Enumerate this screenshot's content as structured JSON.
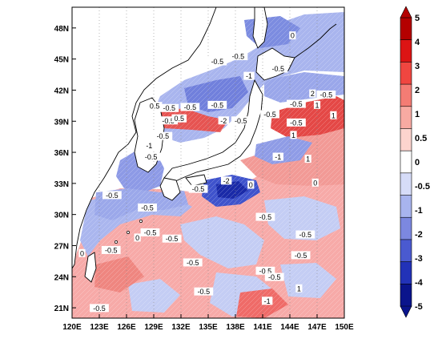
{
  "map": {
    "x_ticks": [
      "120E",
      "123E",
      "126E",
      "129E",
      "132E",
      "135E",
      "138E",
      "141E",
      "144E",
      "147E",
      "150E"
    ],
    "y_ticks": [
      "48N",
      "45N",
      "42N",
      "39N",
      "36N",
      "33N",
      "30N",
      "27N",
      "24N",
      "21N"
    ],
    "contour_labels": [
      {
        "text": "0",
        "lon": 144.3,
        "lat": 47.2
      },
      {
        "text": "-0.5",
        "lon": 136.0,
        "lat": 44.7
      },
      {
        "text": "-0.5",
        "lon": 138.3,
        "lat": 45.2
      },
      {
        "text": "-1",
        "lon": 139.5,
        "lat": 43.3
      },
      {
        "text": "-0.5",
        "lon": 142.7,
        "lat": 44.0
      },
      {
        "text": "0.5",
        "lon": 129.1,
        "lat": 40.4
      },
      {
        "text": "-0.5",
        "lon": 130.7,
        "lat": 40.2
      },
      {
        "text": "-0.5",
        "lon": 133.0,
        "lat": 40.3
      },
      {
        "text": "-0.5",
        "lon": 136.0,
        "lat": 40.5
      },
      {
        "text": "-0.5",
        "lon": 144.7,
        "lat": 40.6
      },
      {
        "text": "2",
        "lon": 146.5,
        "lat": 41.6
      },
      {
        "text": "-0.5",
        "lon": 148.0,
        "lat": 41.5
      },
      {
        "text": "1",
        "lon": 147.0,
        "lat": 40.5
      },
      {
        "text": "-0.5",
        "lon": 130.6,
        "lat": 39.0
      },
      {
        "text": "0.5",
        "lon": 131.8,
        "lat": 39.2
      },
      {
        "text": "-2",
        "lon": 136.7,
        "lat": 39.0
      },
      {
        "text": "-0.5",
        "lon": 138.6,
        "lat": 39.0
      },
      {
        "text": "-0.5",
        "lon": 141.8,
        "lat": 39.6
      },
      {
        "text": "1",
        "lon": 148.8,
        "lat": 39.5
      },
      {
        "text": "-0.5",
        "lon": 144.7,
        "lat": 38.8
      },
      {
        "text": "-0.5",
        "lon": 130.0,
        "lat": 37.5
      },
      {
        "text": "-1",
        "lon": 128.5,
        "lat": 36.6
      },
      {
        "text": "1",
        "lon": 144.4,
        "lat": 37.6
      },
      {
        "text": "-0.5",
        "lon": 128.7,
        "lat": 35.5
      },
      {
        "text": "-1",
        "lon": 142.7,
        "lat": 35.5
      },
      {
        "text": "1",
        "lon": 146.0,
        "lat": 35.3
      },
      {
        "text": "-2",
        "lon": 137.0,
        "lat": 33.2
      },
      {
        "text": "-0.5",
        "lon": 133.9,
        "lat": 32.4
      },
      {
        "text": "0",
        "lon": 139.7,
        "lat": 32.8
      },
      {
        "text": "0",
        "lon": 146.8,
        "lat": 33.0
      },
      {
        "text": "-0.5",
        "lon": 124.4,
        "lat": 31.8
      },
      {
        "text": "-0.5",
        "lon": 128.3,
        "lat": 30.6
      },
      {
        "text": "-0.5",
        "lon": 145.7,
        "lat": 28.0
      },
      {
        "text": "-0.5",
        "lon": 141.3,
        "lat": 29.7
      },
      {
        "text": "-0.5",
        "lon": 128.6,
        "lat": 28.2
      },
      {
        "text": "-0.5",
        "lon": 131.0,
        "lat": 27.6
      },
      {
        "text": "-0.5",
        "lon": 124.3,
        "lat": 26.5
      },
      {
        "text": "0",
        "lon": 127.2,
        "lat": 27.7
      },
      {
        "text": "-0.5",
        "lon": 133.3,
        "lat": 25.3
      },
      {
        "text": "-0.5",
        "lon": 145.2,
        "lat": 26.0
      },
      {
        "text": "-0.5",
        "lon": 141.3,
        "lat": 24.5
      },
      {
        "text": "-0.5",
        "lon": 142.3,
        "lat": 23.9
      },
      {
        "text": "-0.5",
        "lon": 134.5,
        "lat": 22.5
      },
      {
        "text": "-1",
        "lon": 141.5,
        "lat": 21.6
      },
      {
        "text": "1",
        "lon": 145.0,
        "lat": 22.8
      },
      {
        "text": "-0.5",
        "lon": 123.0,
        "lat": 20.9
      },
      {
        "text": "0",
        "lon": 121.1,
        "lat": 26.2
      }
    ]
  },
  "colorbar": {
    "levels": [
      "5",
      "4",
      "3",
      "2",
      "1",
      "0.5",
      "0",
      "-0.5",
      "-1",
      "-2",
      "-3",
      "-4",
      "-5"
    ],
    "colors": [
      "#b40000",
      "#dc1414",
      "#f04640",
      "#f47c74",
      "#f8aaa2",
      "#fcd4ce",
      "#ffffff",
      "#d6dcf8",
      "#a8b4ee",
      "#7c88e0",
      "#4a5ad0",
      "#2232b8",
      "#0a148c"
    ]
  },
  "colors": {
    "ocean_neg": "#b4bff0",
    "ocean_neg_strong": "#6e7fdf",
    "ocean_pos": "#f7a8a8",
    "ocean_pos_strong": "#e85050",
    "land": "#ffffff",
    "coast": "#000000"
  }
}
